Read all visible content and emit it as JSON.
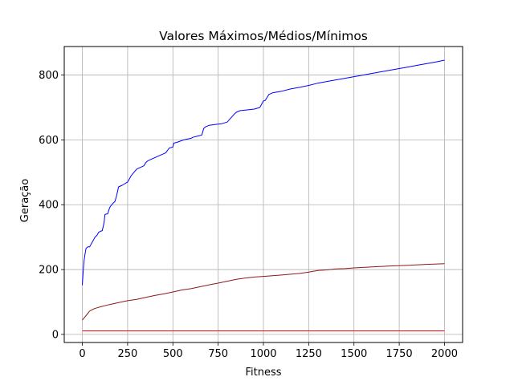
{
  "chart_data": {
    "type": "line",
    "title": "Valores Máximos/Médios/Mínimos",
    "xlabel": "Fitness",
    "ylabel": "Geração",
    "xlim": [
      -100,
      2100
    ],
    "ylim": [
      -25,
      888
    ],
    "xticks": [
      0,
      250,
      500,
      750,
      1000,
      1250,
      1500,
      1750,
      2000
    ],
    "yticks": [
      0,
      200,
      400,
      600,
      800
    ],
    "grid": true,
    "legend": "none",
    "series": [
      {
        "color": "#0000ff",
        "x": [
          0,
          5,
          10,
          15,
          20,
          30,
          40,
          50,
          60,
          70,
          80,
          90,
          100,
          110,
          120,
          125,
          140,
          150,
          155,
          170,
          180,
          190,
          200,
          220,
          235,
          240,
          250,
          260,
          270,
          300,
          340,
          350,
          360,
          380,
          400,
          420,
          440,
          460,
          480,
          500,
          505,
          520,
          560,
          600,
          610,
          640,
          660,
          670,
          680,
          700,
          740,
          770,
          800,
          840,
          850,
          870,
          900,
          950,
          980,
          1000,
          1010,
          1030,
          1050,
          1100,
          1150,
          1200,
          1250,
          1300,
          1350,
          1400,
          1450,
          1500,
          1550,
          1600,
          1650,
          1700,
          1750,
          1800,
          1850,
          1900,
          1950,
          2000
        ],
        "y": [
          152,
          200,
          230,
          248,
          265,
          270,
          270,
          280,
          290,
          300,
          305,
          315,
          318,
          320,
          345,
          370,
          372,
          390,
          395,
          405,
          410,
          430,
          455,
          460,
          465,
          467,
          470,
          480,
          490,
          510,
          520,
          530,
          535,
          540,
          545,
          550,
          555,
          560,
          575,
          578,
          590,
          592,
          600,
          605,
          608,
          612,
          615,
          635,
          640,
          645,
          648,
          650,
          655,
          680,
          685,
          690,
          692,
          695,
          700,
          720,
          722,
          740,
          745,
          750,
          757,
          762,
          768,
          775,
          780,
          785,
          790,
          795,
          800,
          805,
          810,
          815,
          820,
          825,
          830,
          835,
          840,
          846
        ]
      },
      {
        "color": "#8b1a1a",
        "x": [
          0,
          20,
          40,
          60,
          80,
          100,
          150,
          200,
          250,
          300,
          350,
          400,
          450,
          500,
          550,
          600,
          650,
          700,
          750,
          800,
          850,
          900,
          950,
          1000,
          1100,
          1200,
          1250,
          1300,
          1350,
          1400,
          1450,
          1500,
          1600,
          1700,
          1800,
          1900,
          2000
        ],
        "y": [
          44,
          58,
          72,
          78,
          82,
          85,
          92,
          98,
          104,
          108,
          114,
          120,
          125,
          131,
          137,
          141,
          147,
          153,
          158,
          164,
          170,
          174,
          177,
          179,
          183,
          188,
          192,
          197,
          199,
          202,
          203,
          205,
          208,
          211,
          213,
          216,
          218
        ]
      },
      {
        "color": "#ff0000",
        "x": [
          0,
          500,
          1000,
          1500,
          2000
        ],
        "y": [
          11,
          11,
          11,
          11,
          11
        ]
      }
    ]
  }
}
